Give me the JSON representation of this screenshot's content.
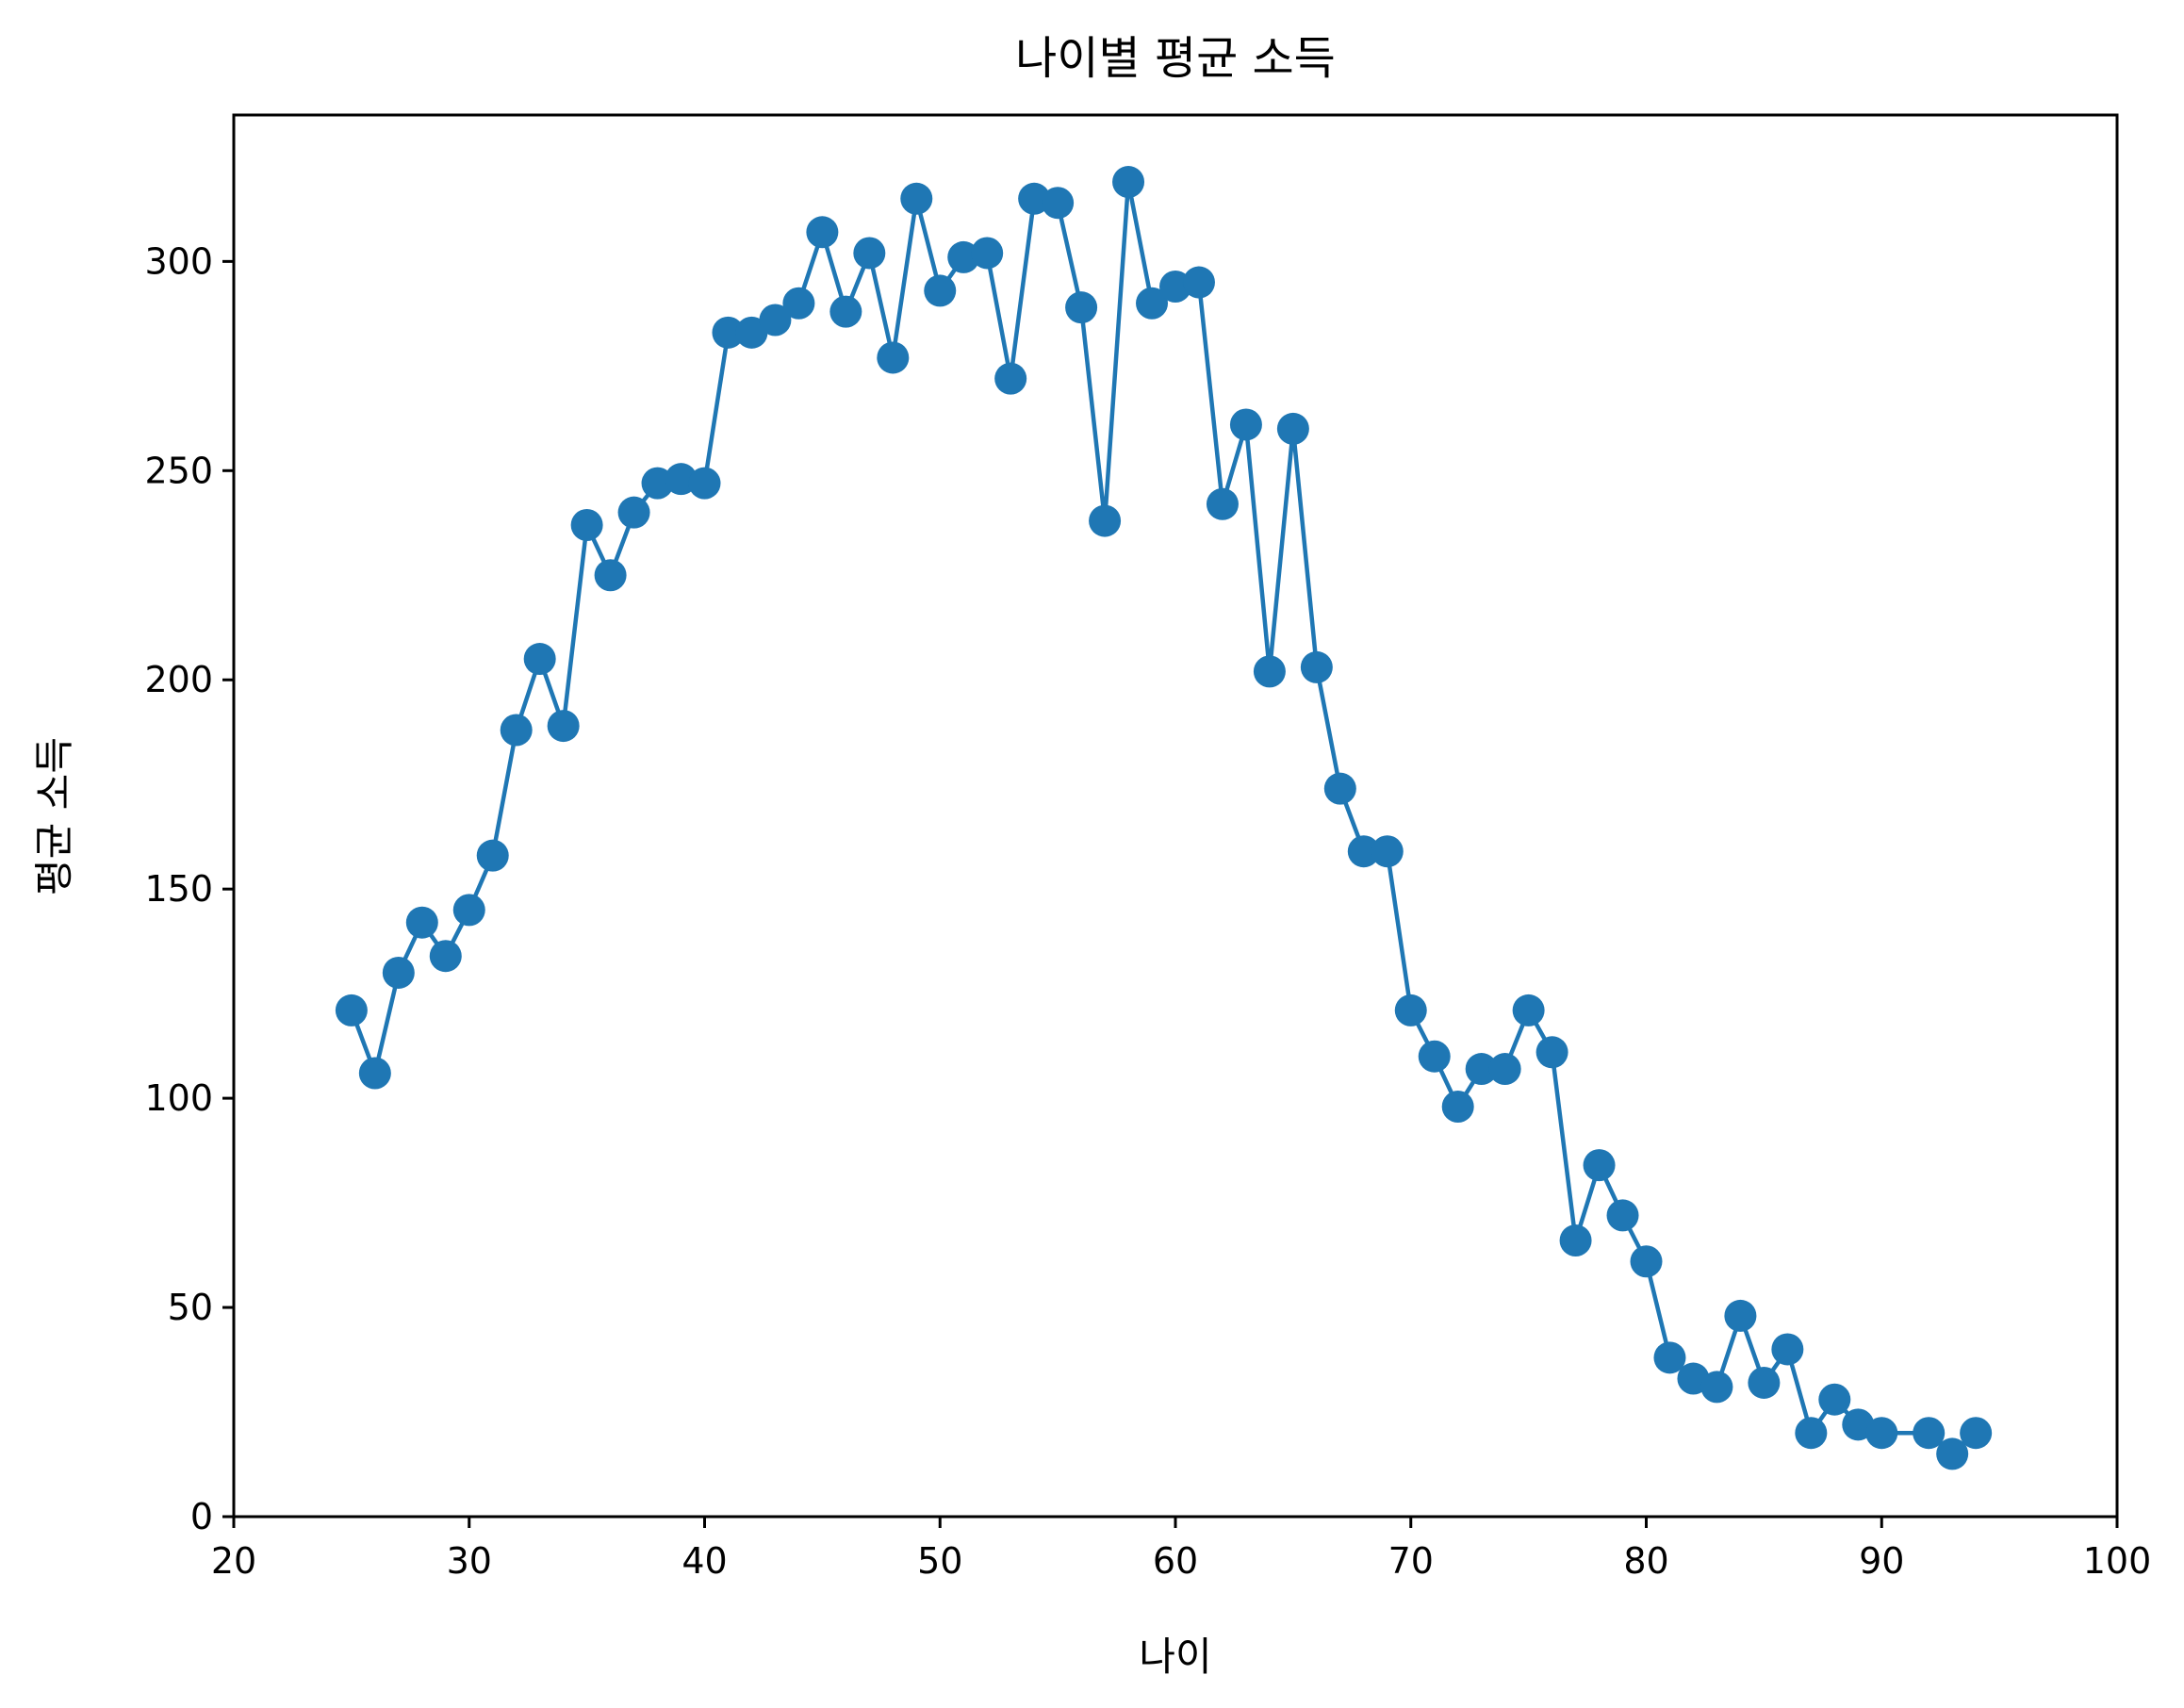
{
  "chart_data": {
    "type": "line",
    "title": "나이별 평균 소득",
    "xlabel": "나이",
    "ylabel": "평균 소득",
    "xlim": [
      20,
      100
    ],
    "ylim": [
      0,
      335
    ],
    "xticks": [
      20,
      30,
      40,
      50,
      60,
      70,
      80,
      90,
      100
    ],
    "yticks": [
      0,
      50,
      100,
      150,
      200,
      250,
      300
    ],
    "grid": false,
    "legend": "none",
    "marker": "circle",
    "series": [
      {
        "color": "#1f77b4",
        "x": [
          25,
          26,
          27,
          28,
          29,
          30,
          31,
          32,
          33,
          34,
          35,
          36,
          37,
          38,
          39,
          40,
          41,
          42,
          43,
          44,
          45,
          46,
          47,
          48,
          49,
          50,
          51,
          52,
          53,
          54,
          55,
          56,
          57,
          58,
          59,
          60,
          61,
          62,
          63,
          64,
          65,
          66,
          67,
          68,
          69,
          70,
          71,
          72,
          73,
          74,
          75,
          76,
          77,
          78,
          79,
          80,
          81,
          82,
          83,
          84,
          85,
          86,
          87,
          88,
          89,
          90,
          92,
          93,
          94
        ],
        "y": [
          121,
          106,
          130,
          142,
          134,
          145,
          158,
          188,
          205,
          189,
          237,
          225,
          240,
          247,
          248,
          247,
          283,
          283,
          286,
          290,
          307,
          288,
          302,
          277,
          315,
          293,
          301,
          302,
          272,
          315,
          314,
          289,
          238,
          319,
          290,
          294,
          295,
          242,
          261,
          202,
          260,
          203,
          174,
          159,
          159,
          121,
          110,
          98,
          107,
          107,
          121,
          111,
          66,
          84,
          72,
          61,
          38,
          33,
          31,
          48,
          32,
          40,
          20,
          28,
          22,
          20,
          20,
          15,
          20
        ]
      }
    ]
  }
}
